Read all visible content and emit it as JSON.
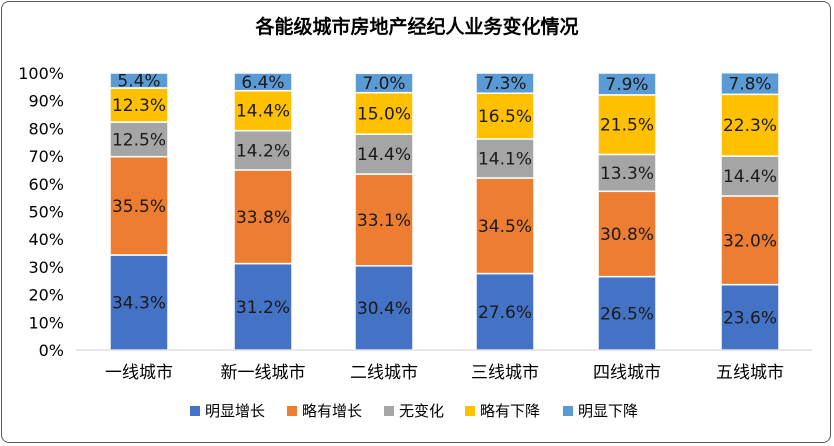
{
  "chart_data": {
    "type": "bar",
    "stacked": true,
    "title": "各能级城市房地产经纪人业务变化情况",
    "categories": [
      "一线城市",
      "新一线城市",
      "二线城市",
      "三线城市",
      "四线城市",
      "五线城市"
    ],
    "series": [
      {
        "name": "明显增长",
        "color": "#4472C4",
        "values": [
          34.3,
          31.2,
          30.4,
          27.6,
          26.5,
          23.6
        ]
      },
      {
        "name": "略有增长",
        "color": "#ED7D31",
        "values": [
          35.5,
          33.8,
          33.1,
          34.5,
          30.8,
          32.0
        ]
      },
      {
        "name": "无变化",
        "color": "#A5A5A5",
        "values": [
          12.5,
          14.2,
          14.4,
          14.1,
          13.3,
          14.4
        ]
      },
      {
        "name": "略有下降",
        "color": "#FFC000",
        "values": [
          12.3,
          14.4,
          15.0,
          16.5,
          21.5,
          22.3
        ]
      },
      {
        "name": "明显下降",
        "color": "#5B9BD5",
        "values": [
          5.4,
          6.4,
          7.0,
          7.3,
          7.9,
          7.8
        ]
      }
    ],
    "value_suffix": "%",
    "ylim": [
      0,
      100
    ],
    "yticks": [
      "0%",
      "10%",
      "20%",
      "30%",
      "40%",
      "50%",
      "60%",
      "70%",
      "80%",
      "90%",
      "100%"
    ],
    "grid": false,
    "legend_position": "bottom"
  }
}
